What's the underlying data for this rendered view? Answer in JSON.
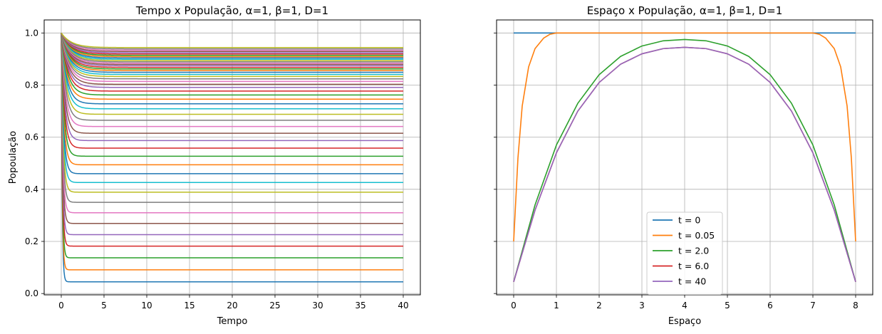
{
  "chart_data": [
    {
      "type": "line",
      "title": "Tempo x População, α=1, β=1, D=1",
      "xlabel": "Tempo",
      "ylabel": "Popoulação",
      "xlim": [
        -2,
        42
      ],
      "ylim": [
        -0.005,
        1.05
      ],
      "xticks": [
        "0",
        "5",
        "10",
        "15",
        "20",
        "25",
        "30",
        "35",
        "40"
      ],
      "yticks": [
        "0.0",
        "0.2",
        "0.4",
        "0.6",
        "0.8",
        "1.0"
      ],
      "grid": true,
      "x_range": [
        0,
        40
      ],
      "initial_value": 1.0,
      "series_steady_values": [
        0.045,
        0.091,
        0.137,
        0.182,
        0.226,
        0.269,
        0.31,
        0.35,
        0.389,
        0.426,
        0.46,
        0.494,
        0.527,
        0.558,
        0.587,
        0.615,
        0.641,
        0.665,
        0.688,
        0.709,
        0.728,
        0.746,
        0.762,
        0.777,
        0.791,
        0.803,
        0.814,
        0.824,
        0.833,
        0.841,
        0.849,
        0.856,
        0.862,
        0.868,
        0.874,
        0.879,
        0.884,
        0.889,
        0.894,
        0.899,
        0.904,
        0.909,
        0.914,
        0.919,
        0.924,
        0.929,
        0.934,
        0.939,
        0.944
      ],
      "colors": [
        "#1f77b4",
        "#ff7f0e",
        "#2ca02c",
        "#d62728",
        "#9467bd",
        "#8c564b",
        "#e377c2",
        "#7f7f7f",
        "#bcbd22",
        "#17becf"
      ]
    },
    {
      "type": "line",
      "title": "Espaço x População, α=1, β=1, D=1",
      "xlabel": "Espaço",
      "ylabel": "",
      "xlim": [
        -0.4,
        8.4
      ],
      "ylim": [
        -0.005,
        1.05
      ],
      "xticks": [
        "0",
        "1",
        "2",
        "3",
        "4",
        "5",
        "6",
        "7",
        "8"
      ],
      "grid": true,
      "legend_position": "bottom-center",
      "series": [
        {
          "name": "t = 0",
          "color": "#1f77b4",
          "x": [
            0,
            8
          ],
          "y": [
            1.0,
            1.0
          ]
        },
        {
          "name": "t = 0.05",
          "color": "#ff7f0e",
          "x": [
            0,
            0.1,
            0.2,
            0.35,
            0.5,
            0.7,
            0.85,
            1.0,
            1.5,
            6.5,
            7.0,
            7.15,
            7.3,
            7.5,
            7.65,
            7.8,
            7.9,
            8.0
          ],
          "y": [
            0.2,
            0.52,
            0.72,
            0.87,
            0.94,
            0.98,
            0.995,
            1.0,
            1.0,
            1.0,
            1.0,
            0.995,
            0.98,
            0.94,
            0.87,
            0.72,
            0.52,
            0.2
          ]
        },
        {
          "name": "t = 2.0",
          "color": "#2ca02c",
          "x": [
            0,
            0.5,
            1.0,
            1.5,
            2.0,
            2.5,
            3.0,
            3.5,
            4.0,
            4.5,
            5.0,
            5.5,
            6.0,
            6.5,
            7.0,
            7.5,
            8.0
          ],
          "y": [
            0.045,
            0.34,
            0.57,
            0.73,
            0.84,
            0.91,
            0.95,
            0.97,
            0.975,
            0.97,
            0.95,
            0.91,
            0.84,
            0.73,
            0.57,
            0.34,
            0.045
          ]
        },
        {
          "name": "t = 6.0",
          "color": "#d62728",
          "x": [
            0,
            0.5,
            1.0,
            1.5,
            2.0,
            2.5,
            3.0,
            3.5,
            4.0,
            4.5,
            5.0,
            5.5,
            6.0,
            6.5,
            7.0,
            7.5,
            8.0
          ],
          "y": [
            0.045,
            0.32,
            0.54,
            0.7,
            0.81,
            0.88,
            0.92,
            0.94,
            0.945,
            0.94,
            0.92,
            0.88,
            0.81,
            0.7,
            0.54,
            0.32,
            0.045
          ]
        },
        {
          "name": "t = 40",
          "color": "#9467bd",
          "x": [
            0,
            0.5,
            1.0,
            1.5,
            2.0,
            2.5,
            3.0,
            3.5,
            4.0,
            4.5,
            5.0,
            5.5,
            6.0,
            6.5,
            7.0,
            7.5,
            8.0
          ],
          "y": [
            0.045,
            0.32,
            0.54,
            0.7,
            0.81,
            0.88,
            0.92,
            0.94,
            0.945,
            0.94,
            0.92,
            0.88,
            0.81,
            0.7,
            0.54,
            0.32,
            0.045
          ]
        }
      ]
    }
  ]
}
